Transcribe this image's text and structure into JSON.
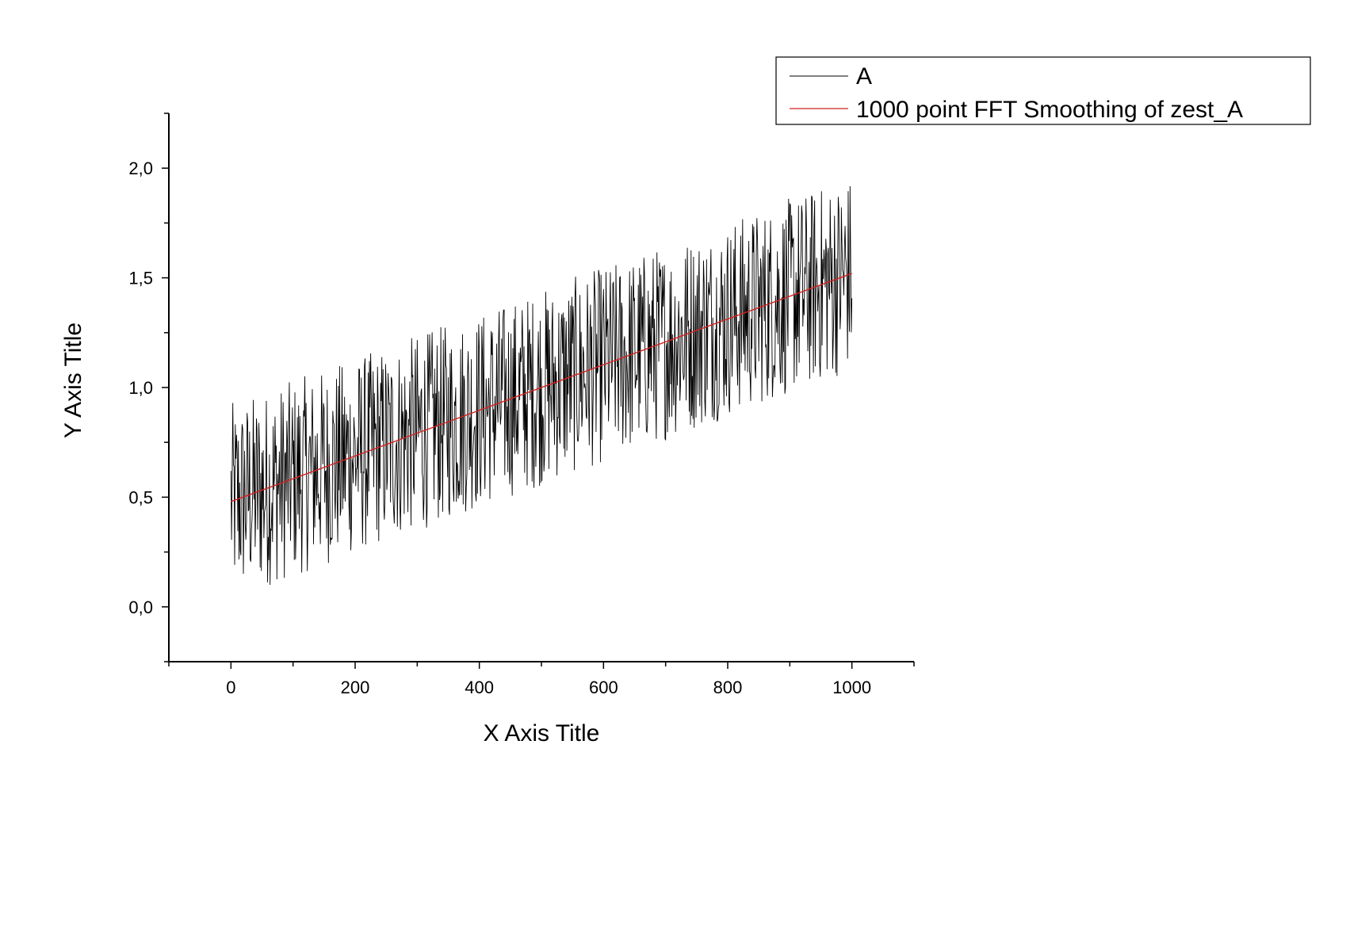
{
  "chart_data": {
    "type": "line",
    "title": "",
    "xlabel": "X Axis Title",
    "ylabel": "Y Axis Title",
    "xlim": [
      -100,
      1100
    ],
    "ylim": [
      -0.25,
      2.25
    ],
    "xticks": [
      0,
      200,
      400,
      600,
      800,
      1000
    ],
    "xtick_labels": [
      "0",
      "200",
      "400",
      "600",
      "800",
      "1000"
    ],
    "yticks": [
      0.0,
      0.5,
      1.0,
      1.5,
      2.0
    ],
    "ytick_labels": [
      "0,0",
      "0,5",
      "1,0",
      "1,5",
      "2,0"
    ],
    "grid": false,
    "legend_position": "top-right",
    "series": [
      {
        "name": "A",
        "color": "#000000",
        "description": "noisy signal, 1000 points",
        "x_range": [
          0,
          1000
        ],
        "trend_start": 0.48,
        "trend_end": 1.52,
        "noise_amplitude": 0.45
      },
      {
        "name": "1000 point FFT Smoothing of zest_A",
        "color": "#d42020",
        "x": [
          0,
          1000
        ],
        "y": [
          0.48,
          1.52
        ]
      }
    ]
  }
}
